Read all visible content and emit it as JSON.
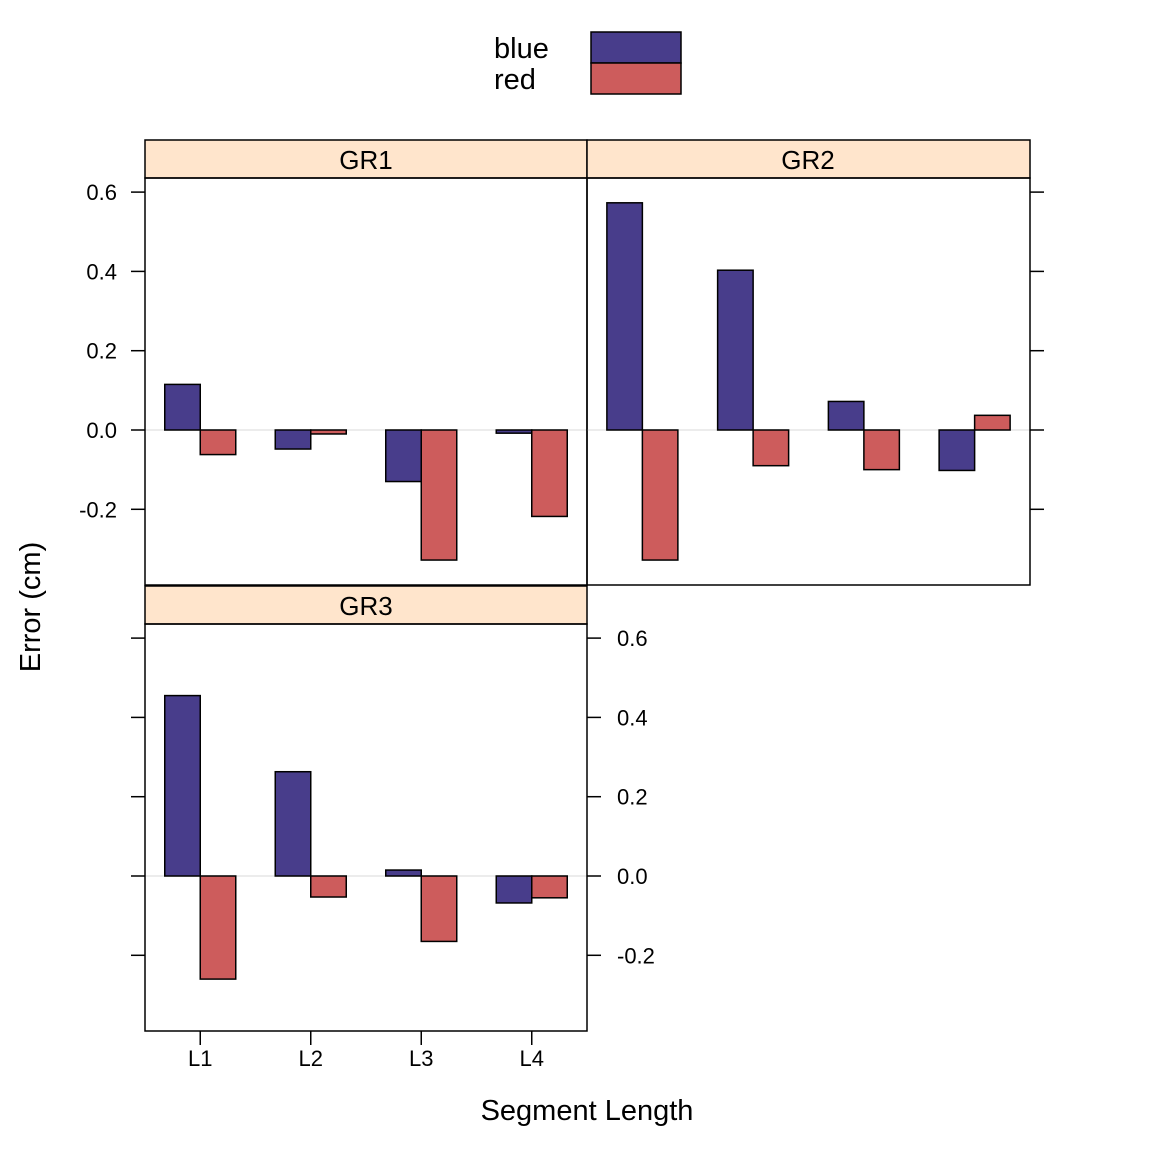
{
  "chart_data": {
    "type": "bar",
    "layout": "trellis",
    "xlabel": "Segment Length",
    "ylabel": "Error (cm)",
    "categories": [
      "L1",
      "L2",
      "L3",
      "L4"
    ],
    "ylim": [
      -0.4,
      0.6
    ],
    "yticks": [
      -0.2,
      0.0,
      0.2,
      0.4,
      0.6
    ],
    "ytick_labels": [
      "-0.2",
      "0.0",
      "0.2",
      "0.4",
      "0.6"
    ],
    "legend": {
      "position": "top",
      "entries": [
        {
          "name": "blue",
          "color": "#483D8B"
        },
        {
          "name": "red",
          "color": "#CD5C5C"
        }
      ]
    },
    "panels": [
      {
        "title": "GR1",
        "series": [
          {
            "name": "blue",
            "values": [
              0.115,
              -0.048,
              -0.13,
              -0.008
            ]
          },
          {
            "name": "red",
            "values": [
              -0.062,
              -0.01,
              -0.328,
              -0.218
            ]
          }
        ]
      },
      {
        "title": "GR2",
        "series": [
          {
            "name": "blue",
            "values": [
              0.573,
              0.403,
              0.072,
              -0.102
            ]
          },
          {
            "name": "red",
            "values": [
              -0.328,
              -0.09,
              -0.1,
              0.037
            ]
          }
        ]
      },
      {
        "title": "GR3",
        "series": [
          {
            "name": "blue",
            "values": [
              0.455,
              0.263,
              0.015,
              -0.068
            ]
          },
          {
            "name": "red",
            "values": [
              -0.26,
              -0.053,
              -0.165,
              -0.055
            ]
          }
        ]
      }
    ]
  }
}
